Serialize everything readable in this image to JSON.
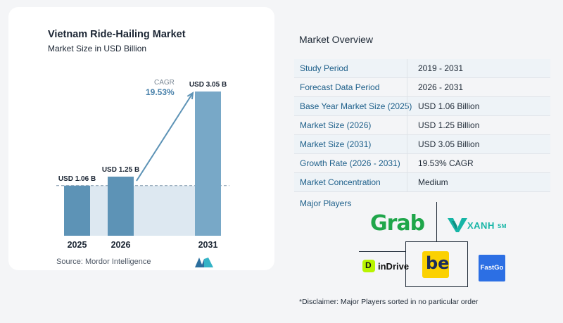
{
  "chart_data": {
    "type": "bar",
    "title": "Vietnam Ride-Hailing Market",
    "subtitle": "Market Size in USD Billion",
    "categories": [
      "2025",
      "2026",
      "2031"
    ],
    "values": [
      1.06,
      1.25,
      3.05
    ],
    "data_labels": [
      "USD 1.06 B",
      "USD 1.25 B",
      "USD 3.05 B"
    ],
    "ylim": [
      0,
      3.2
    ],
    "annotation": {
      "label": "CAGR",
      "value": "19.53%"
    },
    "bar_colors": [
      "#5d93b6",
      "#5d93b6",
      "#78a8c7"
    ],
    "grid": false,
    "legend": "none"
  },
  "source": "Source:  Mordor Intelligence",
  "overview": {
    "title": "Market Overview",
    "rows": [
      {
        "label": "Study Period",
        "value": "2019 - 2031"
      },
      {
        "label": "Forecast Data Period",
        "value": "2026 - 2031"
      },
      {
        "label": "Base Year Market Size (2025)",
        "value": "USD 1.06 Billion"
      },
      {
        "label": "Market Size (2026)",
        "value": "USD 1.25 Billion"
      },
      {
        "label": "Market Size (2031)",
        "value": "USD 3.05 Billion"
      },
      {
        "label": "Growth Rate (2026 - 2031)",
        "value": "19.53% CAGR"
      },
      {
        "label": "Market Concentration",
        "value": "Medium"
      }
    ]
  },
  "players": {
    "title": "Major Players",
    "grab": "Grab",
    "xanh": "XANH",
    "xanh_sm": "SM",
    "indrive_glyph": "D",
    "indrive": "inDrive",
    "be": "be",
    "fastgo": "FastGo"
  },
  "disclaimer": "*Disclaimer: Major Players sorted in no particular order"
}
